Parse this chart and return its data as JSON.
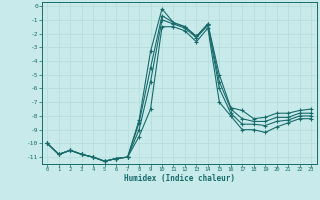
{
  "xlabel": "Humidex (Indice chaleur)",
  "bg_color": "#c8eaea",
  "line_color": "#1a6b6b",
  "grid_color": "#b8dede",
  "xlim": [
    -0.5,
    23.5
  ],
  "ylim": [
    -11.5,
    0.3
  ],
  "yticks": [
    0,
    -1,
    -2,
    -3,
    -4,
    -5,
    -6,
    -7,
    -8,
    -9,
    -10,
    -11
  ],
  "xticks": [
    0,
    1,
    2,
    3,
    4,
    5,
    6,
    7,
    8,
    9,
    10,
    11,
    12,
    13,
    14,
    15,
    16,
    17,
    18,
    19,
    20,
    21,
    22,
    23
  ],
  "series": [
    {
      "x": [
        0,
        1,
        2,
        3,
        4,
        5,
        6,
        7,
        8,
        9,
        10,
        11,
        12,
        13,
        14,
        15,
        16,
        17,
        18,
        19,
        20,
        21,
        22,
        23
      ],
      "y": [
        -10.0,
        -10.8,
        -10.5,
        -10.8,
        -11.0,
        -11.3,
        -11.1,
        -11.0,
        -8.3,
        -3.3,
        -0.2,
        -1.2,
        -1.5,
        -2.2,
        -1.3,
        -5.0,
        -7.4,
        -7.6,
        -8.2,
        -8.1,
        -7.8,
        -7.8,
        -7.6,
        -7.5
      ]
    },
    {
      "x": [
        0,
        1,
        2,
        3,
        4,
        5,
        6,
        7,
        8,
        9,
        10,
        11,
        12,
        13,
        14,
        15,
        16,
        17,
        18,
        19,
        20,
        21,
        22,
        23
      ],
      "y": [
        -10.0,
        -10.8,
        -10.5,
        -10.8,
        -11.0,
        -11.3,
        -11.1,
        -11.0,
        -8.5,
        -4.5,
        -0.7,
        -1.2,
        -1.5,
        -2.2,
        -1.3,
        -5.5,
        -7.5,
        -8.2,
        -8.4,
        -8.4,
        -8.1,
        -8.1,
        -7.8,
        -7.8
      ]
    },
    {
      "x": [
        0,
        1,
        2,
        3,
        4,
        5,
        6,
        7,
        8,
        9,
        10,
        11,
        12,
        13,
        14,
        15,
        16,
        17,
        18,
        19,
        20,
        21,
        22,
        23
      ],
      "y": [
        -10.0,
        -10.8,
        -10.5,
        -10.8,
        -11.0,
        -11.3,
        -11.1,
        -11.0,
        -9.0,
        -5.5,
        -1.0,
        -1.3,
        -1.6,
        -2.3,
        -1.4,
        -6.0,
        -7.8,
        -8.6,
        -8.6,
        -8.7,
        -8.4,
        -8.3,
        -8.0,
        -8.0
      ]
    },
    {
      "x": [
        0,
        1,
        2,
        3,
        4,
        5,
        6,
        7,
        8,
        9,
        10,
        11,
        12,
        13,
        14,
        15,
        16,
        17,
        18,
        19,
        20,
        21,
        22,
        23
      ],
      "y": [
        -10.0,
        -10.8,
        -10.5,
        -10.8,
        -11.0,
        -11.3,
        -11.1,
        -11.0,
        -9.5,
        -7.5,
        -1.5,
        -1.5,
        -1.8,
        -2.6,
        -1.6,
        -7.0,
        -8.0,
        -9.0,
        -9.0,
        -9.2,
        -8.8,
        -8.5,
        -8.2,
        -8.2
      ]
    }
  ]
}
